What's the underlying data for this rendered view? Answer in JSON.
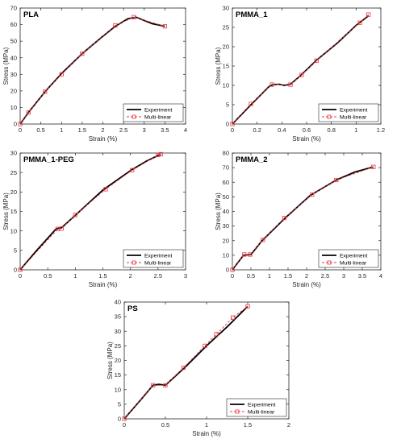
{
  "legend_labels": {
    "experiment": "Experiment",
    "model": "Multi-linear"
  },
  "colors": {
    "experiment": "#000000",
    "model": "#e8383d",
    "axis": "#262626"
  },
  "chart_data": [
    {
      "type": "line",
      "title": "PLA",
      "xlabel": "Strain (%)",
      "ylabel": "Stress (MPa)",
      "xlim": [
        0,
        4
      ],
      "ylim": [
        0,
        70
      ],
      "xticks": [
        0,
        0.5,
        1,
        1.5,
        2,
        2.5,
        3,
        3.5,
        4
      ],
      "yticks": [
        0,
        10,
        20,
        30,
        40,
        50,
        60,
        70
      ],
      "grid": false,
      "legend": "bottom-right",
      "series": [
        {
          "name": "Experiment",
          "x": [
            0,
            0.2,
            0.6,
            1.0,
            1.5,
            2.0,
            2.3,
            2.6,
            2.8,
            3.0,
            3.2,
            3.5
          ],
          "y": [
            0,
            7,
            19.5,
            30.5,
            42.5,
            53,
            59,
            63.5,
            64.5,
            62.5,
            60.5,
            59
          ]
        },
        {
          "name": "Multi-linear",
          "x": [
            0,
            0.2,
            0.6,
            1.0,
            1.5,
            2.3,
            2.75,
            3.5
          ],
          "y": [
            0,
            7,
            19.5,
            30,
            42.5,
            59.5,
            64.5,
            59
          ]
        }
      ]
    },
    {
      "type": "line",
      "title": "PMMA_1",
      "xlabel": "Strain (%)",
      "ylabel": "Stress (MPa)",
      "xlim": [
        0,
        1.2
      ],
      "ylim": [
        0,
        30
      ],
      "xticks": [
        0,
        0.2,
        0.4,
        0.6,
        0.8,
        1,
        1.2
      ],
      "yticks": [
        0,
        5,
        10,
        15,
        20,
        25,
        30
      ],
      "grid": false,
      "legend": "bottom-right",
      "series": [
        {
          "name": "Experiment",
          "x": [
            0,
            0.15,
            0.3,
            0.33,
            0.38,
            0.42,
            0.47,
            0.55,
            0.68,
            0.85,
            1.0,
            1.1
          ],
          "y": [
            0,
            5,
            9.8,
            10.2,
            10.3,
            10.0,
            10.3,
            12.5,
            16.5,
            21,
            25.5,
            28
          ]
        },
        {
          "name": "Multi-linear",
          "x": [
            0,
            0.15,
            0.32,
            0.47,
            0.56,
            0.68,
            1.03,
            1.1
          ],
          "y": [
            0,
            5.2,
            10.2,
            10.2,
            12.7,
            16.4,
            26.2,
            28.3
          ]
        }
      ]
    },
    {
      "type": "line",
      "title": "PMMA_1-PEG",
      "xlabel": "Strain (%)",
      "ylabel": "Stress (MPa)",
      "xlim": [
        0,
        3
      ],
      "ylim": [
        0,
        30
      ],
      "xticks": [
        0,
        0.5,
        1,
        1.5,
        2,
        2.5,
        3
      ],
      "yticks": [
        0,
        5,
        10,
        15,
        20,
        25,
        30
      ],
      "grid": false,
      "legend": "bottom-right",
      "series": [
        {
          "name": "Experiment",
          "x": [
            0,
            0.3,
            0.65,
            0.75,
            1.0,
            1.5,
            2.0,
            2.3,
            2.55
          ],
          "y": [
            0,
            5,
            10.5,
            10.8,
            14,
            20.5,
            25.5,
            28,
            29.7
          ]
        },
        {
          "name": "Multi-linear",
          "x": [
            0,
            0.68,
            0.75,
            1.0,
            1.55,
            2.03,
            2.5,
            2.55
          ],
          "y": [
            0,
            10.5,
            10.6,
            14.1,
            20.7,
            25.6,
            29.5,
            29.7
          ]
        }
      ]
    },
    {
      "type": "line",
      "title": "PMMA_2",
      "xlabel": "Strain (%)",
      "ylabel": "Stress (MPa)",
      "xlim": [
        0,
        4
      ],
      "ylim": [
        0,
        80
      ],
      "xticks": [
        0,
        0.5,
        1,
        1.5,
        2,
        2.5,
        3,
        3.5,
        4
      ],
      "yticks": [
        0,
        10,
        20,
        30,
        40,
        50,
        60,
        70,
        80
      ],
      "grid": false,
      "legend": "bottom-right",
      "series": [
        {
          "name": "Experiment",
          "x": [
            0,
            0.3,
            0.5,
            0.8,
            1.4,
            2.1,
            2.8,
            3.3,
            3.8
          ],
          "y": [
            0,
            10,
            10.5,
            20,
            35,
            51,
            61.5,
            67,
            70.5
          ]
        },
        {
          "name": "Multi-linear",
          "x": [
            0,
            0.32,
            0.48,
            0.82,
            1.4,
            2.15,
            2.8,
            3.8
          ],
          "y": [
            0,
            10.5,
            10.5,
            20.5,
            35.5,
            51.5,
            61.5,
            70.5
          ]
        }
      ]
    },
    {
      "type": "line",
      "title": "PS",
      "xlabel": "Strain (%)",
      "ylabel": "Stress (MPa)",
      "xlim": [
        0,
        2
      ],
      "ylim": [
        0,
        40
      ],
      "xticks": [
        0,
        0.5,
        1,
        1.5,
        2
      ],
      "yticks": [
        0,
        5,
        10,
        15,
        20,
        25,
        30,
        35,
        40
      ],
      "grid": false,
      "legend": "bottom-right",
      "series": [
        {
          "name": "Experiment",
          "x": [
            0,
            0.2,
            0.35,
            0.42,
            0.5,
            0.75,
            1.0,
            1.25,
            1.5
          ],
          "y": [
            0,
            6.5,
            11.5,
            11.8,
            11.5,
            18,
            25,
            31.5,
            38.5
          ]
        },
        {
          "name": "Multi-linear",
          "x": [
            0,
            0.35,
            0.5,
            0.72,
            0.98,
            1.12,
            1.32,
            1.5
          ],
          "y": [
            0,
            11.5,
            11.5,
            17.5,
            25,
            29,
            34.7,
            38.5
          ]
        }
      ]
    }
  ]
}
